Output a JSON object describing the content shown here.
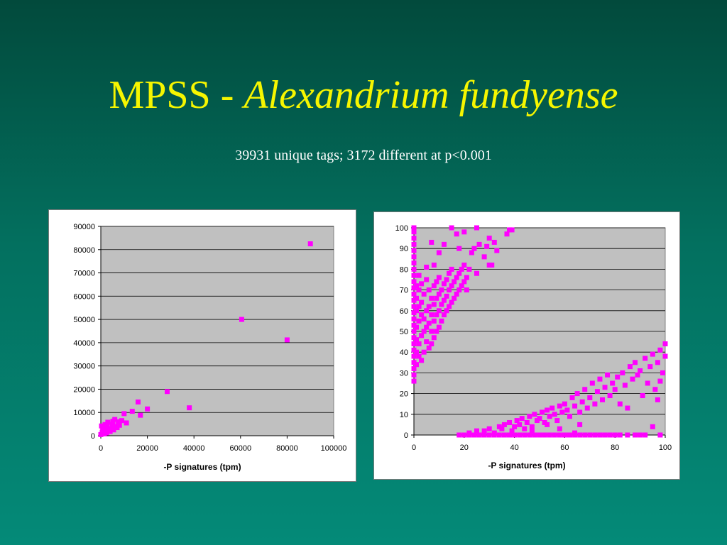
{
  "title": {
    "main": "MPSS - ",
    "italic": "Alexandrium fundyense"
  },
  "subtitle": "39931 unique tags; 3172 different at p<0.001",
  "colors": {
    "marker": "#ff00ff",
    "plot_bg": "#c0c0c0",
    "title": "#f6f600"
  },
  "chart_data": [
    {
      "type": "scatter",
      "title": "",
      "xlabel": "-P signatures (tpm)",
      "ylabel": "",
      "xlim": [
        0,
        100000
      ],
      "ylim": [
        0,
        90000
      ],
      "x_ticks": [
        "0",
        "20000",
        "40000",
        "60000",
        "80000",
        "100000"
      ],
      "y_ticks": [
        "0",
        "10000",
        "20000",
        "30000",
        "40000",
        "50000",
        "60000",
        "70000",
        "80000",
        "90000"
      ],
      "grid": true,
      "legend": "none",
      "points": [
        [
          0,
          500
        ],
        [
          300,
          4200
        ],
        [
          600,
          1500
        ],
        [
          1000,
          2500
        ],
        [
          1500,
          800
        ],
        [
          2000,
          3500
        ],
        [
          2500,
          1200
        ],
        [
          3000,
          5800
        ],
        [
          3500,
          2200
        ],
        [
          4000,
          1800
        ],
        [
          4500,
          3000
        ],
        [
          5000,
          5000
        ],
        [
          5500,
          2500
        ],
        [
          6000,
          7000
        ],
        [
          6500,
          4000
        ],
        [
          7000,
          3500
        ],
        [
          7500,
          6000
        ],
        [
          8000,
          4500
        ],
        [
          9000,
          6500
        ],
        [
          10000,
          9500
        ],
        [
          11000,
          5500
        ],
        [
          13500,
          10500
        ],
        [
          16000,
          14500
        ],
        [
          17000,
          8800
        ],
        [
          20000,
          11500
        ],
        [
          28500,
          19000
        ],
        [
          38000,
          12000
        ],
        [
          60500,
          50000
        ],
        [
          80000,
          41200
        ],
        [
          90000,
          82500
        ],
        [
          1200,
          1000
        ],
        [
          2200,
          2000
        ],
        [
          800,
          3000
        ],
        [
          1800,
          4800
        ],
        [
          2800,
          3800
        ],
        [
          5200,
          6200
        ]
      ]
    },
    {
      "type": "scatter",
      "title": "",
      "xlabel": "-P signatures (tpm)",
      "ylabel": "",
      "xlim": [
        0,
        100
      ],
      "ylim": [
        0,
        100
      ],
      "x_ticks": [
        "0",
        "20",
        "40",
        "60",
        "80",
        "100"
      ],
      "y_ticks": [
        "0",
        "10",
        "20",
        "30",
        "40",
        "50",
        "60",
        "70",
        "80",
        "90",
        "100"
      ],
      "grid": true,
      "legend": "none",
      "points": [
        [
          0,
          26
        ],
        [
          0,
          29
        ],
        [
          0,
          32
        ],
        [
          0,
          35
        ],
        [
          0,
          38
        ],
        [
          0,
          41
        ],
        [
          0,
          44
        ],
        [
          0,
          47
        ],
        [
          0,
          50
        ],
        [
          0,
          53
        ],
        [
          0,
          56
        ],
        [
          0,
          59
        ],
        [
          0,
          62
        ],
        [
          0,
          65
        ],
        [
          0,
          68
        ],
        [
          0,
          71
        ],
        [
          0,
          74
        ],
        [
          0,
          77
        ],
        [
          0,
          80
        ],
        [
          0,
          83
        ],
        [
          0,
          86
        ],
        [
          0,
          89
        ],
        [
          0,
          92
        ],
        [
          0,
          95
        ],
        [
          0,
          98
        ],
        [
          0,
          100
        ],
        [
          1,
          34
        ],
        [
          1,
          40
        ],
        [
          1,
          46
        ],
        [
          1,
          52
        ],
        [
          1,
          60
        ],
        [
          1,
          66
        ],
        [
          1,
          72
        ],
        [
          2,
          38
        ],
        [
          2,
          44
        ],
        [
          2,
          55
        ],
        [
          2,
          62
        ],
        [
          2,
          70
        ],
        [
          2,
          77
        ],
        [
          3,
          36
        ],
        [
          3,
          48
        ],
        [
          3,
          58
        ],
        [
          3,
          64
        ],
        [
          3,
          73
        ],
        [
          4,
          40
        ],
        [
          4,
          50
        ],
        [
          4,
          56
        ],
        [
          4,
          68
        ],
        [
          5,
          45
        ],
        [
          5,
          52
        ],
        [
          5,
          60
        ],
        [
          5,
          75
        ],
        [
          5,
          81
        ],
        [
          6,
          42
        ],
        [
          6,
          54
        ],
        [
          6,
          62
        ],
        [
          6,
          70
        ],
        [
          7,
          44
        ],
        [
          7,
          50
        ],
        [
          7,
          58
        ],
        [
          7,
          66
        ],
        [
          7,
          93
        ],
        [
          8,
          47
        ],
        [
          8,
          55
        ],
        [
          8,
          63
        ],
        [
          8,
          72
        ],
        [
          8,
          82
        ],
        [
          9,
          50
        ],
        [
          9,
          58
        ],
        [
          9,
          66
        ],
        [
          9,
          74
        ],
        [
          10,
          52
        ],
        [
          10,
          60
        ],
        [
          10,
          68
        ],
        [
          10,
          76
        ],
        [
          10,
          88
        ],
        [
          11,
          55
        ],
        [
          11,
          63
        ],
        [
          11,
          70
        ],
        [
          12,
          58
        ],
        [
          12,
          65
        ],
        [
          12,
          73
        ],
        [
          12,
          92
        ],
        [
          13,
          60
        ],
        [
          13,
          67
        ],
        [
          13,
          75
        ],
        [
          14,
          62
        ],
        [
          14,
          70
        ],
        [
          14,
          78
        ],
        [
          15,
          64
        ],
        [
          15,
          72
        ],
        [
          15,
          80
        ],
        [
          15,
          100
        ],
        [
          16,
          66
        ],
        [
          16,
          74
        ],
        [
          17,
          68
        ],
        [
          17,
          76
        ],
        [
          17,
          97
        ],
        [
          18,
          70
        ],
        [
          18,
          78
        ],
        [
          18,
          90
        ],
        [
          19,
          72
        ],
        [
          19,
          80
        ],
        [
          20,
          74
        ],
        [
          20,
          82
        ],
        [
          20,
          98
        ],
        [
          21,
          76
        ],
        [
          21,
          70
        ],
        [
          22,
          80
        ],
        [
          23,
          88
        ],
        [
          24,
          90
        ],
        [
          25,
          78
        ],
        [
          25,
          100
        ],
        [
          26,
          92
        ],
        [
          28,
          86
        ],
        [
          29,
          91
        ],
        [
          30,
          82
        ],
        [
          30,
          95
        ],
        [
          31,
          82
        ],
        [
          32,
          93
        ],
        [
          33,
          89
        ],
        [
          37,
          97
        ],
        [
          38,
          99
        ],
        [
          39,
          99
        ],
        [
          18,
          0
        ],
        [
          20,
          0
        ],
        [
          22,
          0
        ],
        [
          24,
          0
        ],
        [
          26,
          0
        ],
        [
          28,
          0
        ],
        [
          30,
          0
        ],
        [
          32,
          0
        ],
        [
          34,
          0
        ],
        [
          36,
          0
        ],
        [
          38,
          0
        ],
        [
          40,
          0
        ],
        [
          42,
          0
        ],
        [
          44,
          0
        ],
        [
          46,
          0
        ],
        [
          48,
          0
        ],
        [
          50,
          0
        ],
        [
          52,
          0
        ],
        [
          54,
          0
        ],
        [
          56,
          0
        ],
        [
          58,
          0
        ],
        [
          60,
          0
        ],
        [
          62,
          0
        ],
        [
          64,
          0
        ],
        [
          66,
          0
        ],
        [
          68,
          0
        ],
        [
          70,
          0
        ],
        [
          72,
          0
        ],
        [
          74,
          0
        ],
        [
          76,
          0
        ],
        [
          78,
          0
        ],
        [
          80,
          0
        ],
        [
          82,
          0
        ],
        [
          85,
          0
        ],
        [
          88,
          0
        ],
        [
          90,
          0
        ],
        [
          92,
          0
        ],
        [
          98,
          0
        ],
        [
          22,
          1
        ],
        [
          25,
          2
        ],
        [
          28,
          2
        ],
        [
          30,
          3
        ],
        [
          32,
          1
        ],
        [
          34,
          4
        ],
        [
          35,
          3
        ],
        [
          36,
          5
        ],
        [
          38,
          6
        ],
        [
          39,
          2
        ],
        [
          40,
          4
        ],
        [
          41,
          7
        ],
        [
          42,
          5
        ],
        [
          43,
          8
        ],
        [
          44,
          3
        ],
        [
          45,
          6
        ],
        [
          46,
          9
        ],
        [
          47,
          4
        ],
        [
          48,
          10
        ],
        [
          49,
          7
        ],
        [
          50,
          8
        ],
        [
          51,
          11
        ],
        [
          52,
          6
        ],
        [
          53,
          12
        ],
        [
          54,
          9
        ],
        [
          55,
          13
        ],
        [
          56,
          10
        ],
        [
          57,
          7
        ],
        [
          58,
          14
        ],
        [
          59,
          11
        ],
        [
          60,
          15
        ],
        [
          61,
          12
        ],
        [
          62,
          9
        ],
        [
          63,
          18
        ],
        [
          64,
          14
        ],
        [
          65,
          20
        ],
        [
          66,
          11
        ],
        [
          67,
          16
        ],
        [
          68,
          22
        ],
        [
          69,
          13
        ],
        [
          70,
          18
        ],
        [
          71,
          25
        ],
        [
          72,
          15
        ],
        [
          73,
          21
        ],
        [
          74,
          27
        ],
        [
          75,
          17
        ],
        [
          76,
          23
        ],
        [
          77,
          29
        ],
        [
          78,
          19
        ],
        [
          79,
          25
        ],
        [
          80,
          22
        ],
        [
          81,
          28
        ],
        [
          82,
          15
        ],
        [
          83,
          30
        ],
        [
          84,
          24
        ],
        [
          85,
          13
        ],
        [
          86,
          33
        ],
        [
          87,
          27
        ],
        [
          88,
          35
        ],
        [
          89,
          29
        ],
        [
          90,
          31
        ],
        [
          91,
          19
        ],
        [
          92,
          37
        ],
        [
          93,
          25
        ],
        [
          94,
          33
        ],
        [
          95,
          39
        ],
        [
          96,
          22
        ],
        [
          97,
          35
        ],
        [
          98,
          41
        ],
        [
          99,
          30
        ],
        [
          100,
          44
        ],
        [
          100,
          38
        ],
        [
          98,
          26
        ],
        [
          95,
          4
        ],
        [
          97,
          17
        ],
        [
          64,
          1
        ],
        [
          58,
          3
        ],
        [
          47,
          2
        ],
        [
          53,
          5
        ],
        [
          66,
          5
        ]
      ]
    }
  ]
}
